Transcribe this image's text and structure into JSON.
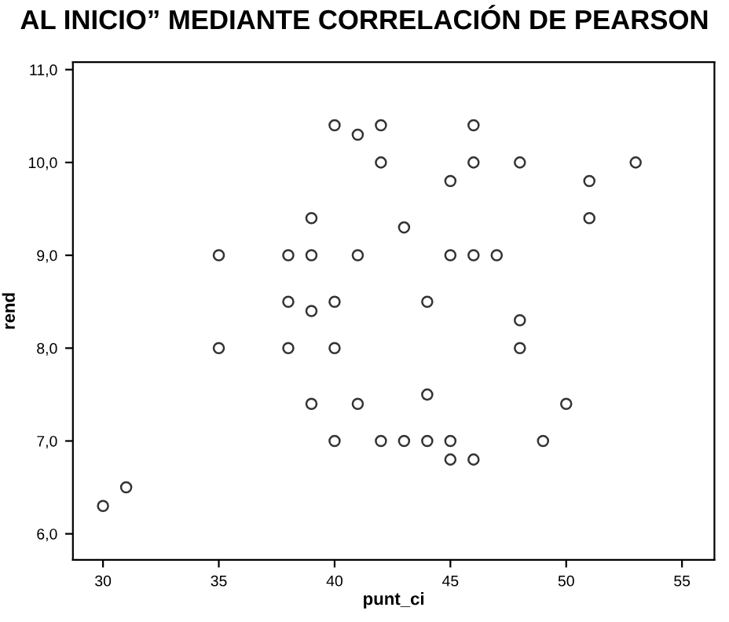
{
  "chart_data": {
    "type": "scatter",
    "title": "AL INICIO” MEDIANTE CORRELACIÓN DE PEARSON",
    "xlabel": "punt_ci",
    "ylabel": "rend",
    "xlim": [
      28.7,
      56.4
    ],
    "ylim": [
      5.72,
      11.08
    ],
    "xticks": [
      30,
      35,
      40,
      45,
      50,
      55
    ],
    "yticks": [
      {
        "value": 6,
        "label": "6,0"
      },
      {
        "value": 7,
        "label": "7,0"
      },
      {
        "value": 8,
        "label": "8,0"
      },
      {
        "value": 9,
        "label": "9,0"
      },
      {
        "value": 10,
        "label": "10,0"
      },
      {
        "value": 11,
        "label": "11,0"
      }
    ],
    "grid": false,
    "marker": "circle",
    "series": [
      {
        "color": "#333333",
        "x": [
          30,
          31,
          35,
          35,
          38,
          38,
          38,
          39,
          39,
          39,
          39,
          40,
          40,
          40,
          40,
          41,
          41,
          41,
          42,
          42,
          42,
          43,
          43,
          44,
          44,
          44,
          45,
          45,
          45,
          45,
          46,
          46,
          46,
          46,
          47,
          48,
          48,
          48,
          49,
          50,
          51,
          51,
          53
        ],
        "values": [
          6.3,
          6.5,
          9.0,
          8.0,
          9.0,
          8.5,
          8.0,
          9.4,
          9.0,
          8.4,
          7.4,
          10.4,
          8.5,
          8.0,
          7.0,
          10.3,
          9.0,
          7.4,
          10.4,
          10.0,
          7.0,
          9.3,
          7.0,
          8.5,
          7.5,
          7.0,
          9.8,
          9.0,
          7.0,
          6.8,
          10.4,
          10.0,
          9.0,
          6.8,
          9.0,
          10.0,
          8.3,
          8.0,
          7.0,
          7.4,
          9.8,
          9.4,
          10.0
        ]
      }
    ]
  }
}
